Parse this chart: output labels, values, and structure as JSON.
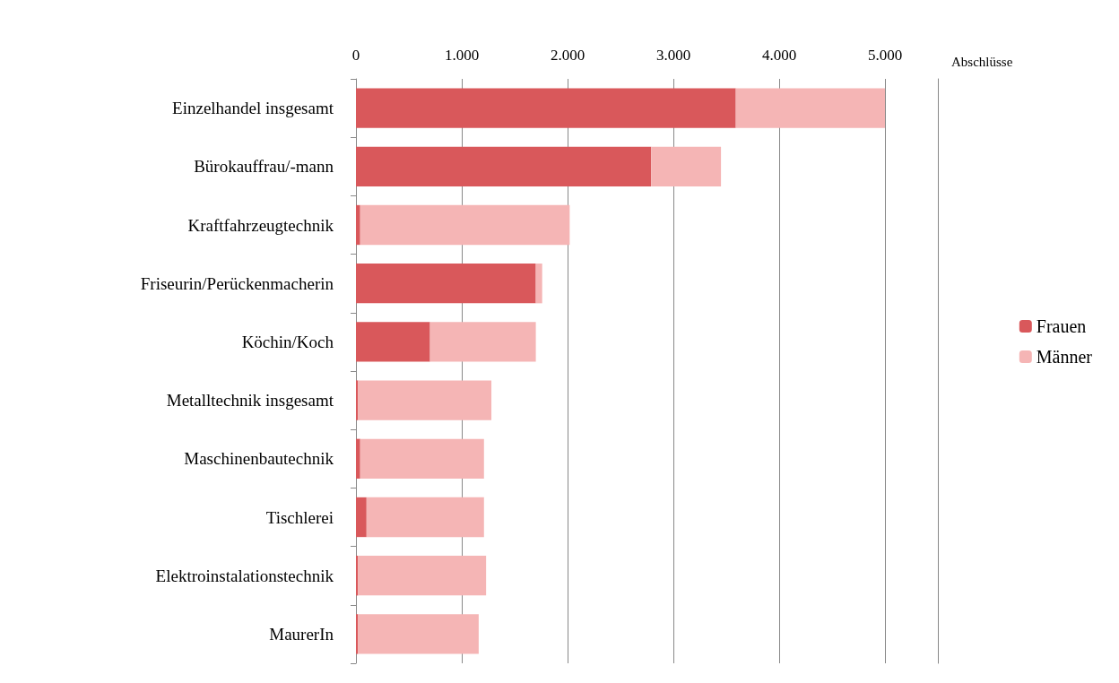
{
  "chart_data": {
    "type": "bar",
    "orientation": "horizontal",
    "stacked": true,
    "xlabel": "Abschlüsse",
    "categories": [
      "Einzelhandel insgesamt",
      "Bürokauffrau/-mann",
      "Kraftfahrzeugtechnik",
      "Friseurin/Perückenmacherin",
      "Köchin/Koch",
      "Metalltechnik insgesamt",
      "Maschinenbautechnik",
      "Tischlerei",
      "Elektroinstalationstechnik",
      "MaurerIn"
    ],
    "series": [
      {
        "name": "Frauen",
        "color": "#d9585b",
        "values": [
          3590,
          2790,
          40,
          1700,
          700,
          20,
          40,
          100,
          20,
          20
        ]
      },
      {
        "name": "Männer",
        "color": "#f5b5b5",
        "values": [
          1410,
          660,
          1980,
          60,
          1000,
          1260,
          1170,
          1110,
          1210,
          1140
        ]
      }
    ],
    "xlim": [
      0,
      5500
    ],
    "xticks": [
      {
        "value": 0,
        "label": "0"
      },
      {
        "value": 1000,
        "label": "1.000"
      },
      {
        "value": 2000,
        "label": "2.000"
      },
      {
        "value": 3000,
        "label": "3.000"
      },
      {
        "value": 4000,
        "label": "4.000"
      },
      {
        "value": 5000,
        "label": "5.000"
      }
    ],
    "grid": "x",
    "legend": "right"
  }
}
